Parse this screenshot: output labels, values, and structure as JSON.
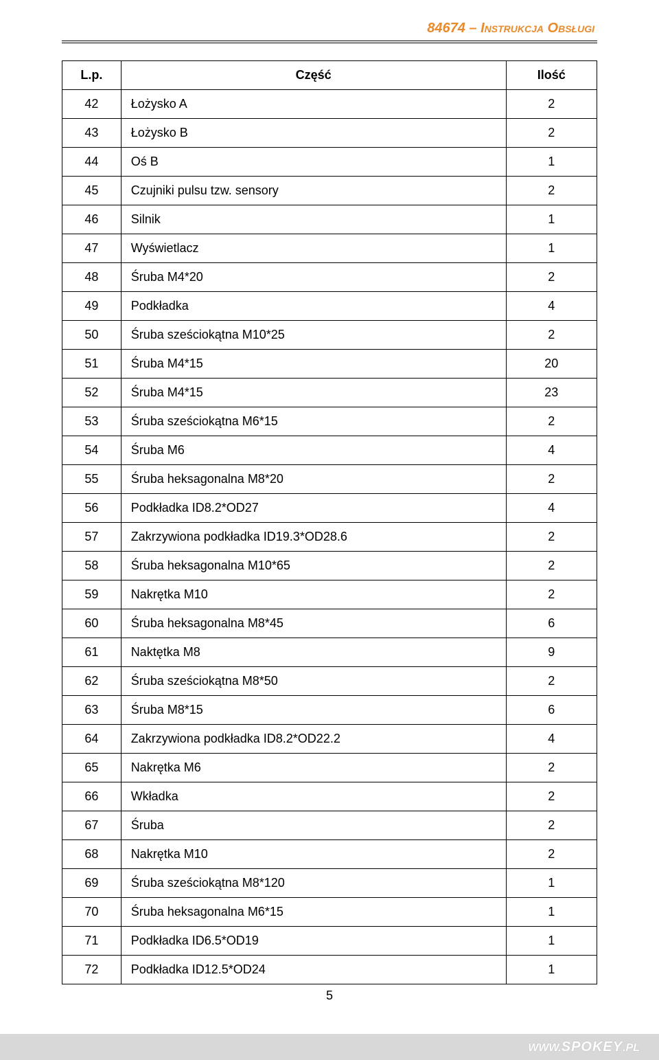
{
  "header": {
    "doc_code": "84674",
    "sep": " – ",
    "title_smallcaps": "Instrukcja Obsługi",
    "color": "#e98b2c"
  },
  "table": {
    "columns": [
      "L.p.",
      "Część",
      "Ilość"
    ],
    "rows": [
      [
        "42",
        "Łożysko A",
        "2"
      ],
      [
        "43",
        "Łożysko B",
        "2"
      ],
      [
        "44",
        "Oś B",
        "1"
      ],
      [
        "45",
        "Czujniki pulsu tzw. sensory",
        "2"
      ],
      [
        "46",
        "Silnik",
        "1"
      ],
      [
        "47",
        "Wyświetlacz",
        "1"
      ],
      [
        "48",
        "Śruba M4*20",
        "2"
      ],
      [
        "49",
        "Podkładka",
        "4"
      ],
      [
        "50",
        "Śruba sześciokątna M10*25",
        "2"
      ],
      [
        "51",
        "Śruba M4*15",
        "20"
      ],
      [
        "52",
        "Śruba M4*15",
        "23"
      ],
      [
        "53",
        "Śruba sześciokątna M6*15",
        "2"
      ],
      [
        "54",
        "Śruba M6",
        "4"
      ],
      [
        "55",
        "Śruba heksagonalna M8*20",
        "2"
      ],
      [
        "56",
        "Podkładka ID8.2*OD27",
        "4"
      ],
      [
        "57",
        "Zakrzywiona podkładka ID19.3*OD28.6",
        "2"
      ],
      [
        "58",
        "Śruba heksagonalna M10*65",
        "2"
      ],
      [
        "59",
        "Nakrętka M10",
        "2"
      ],
      [
        "60",
        "Śruba heksagonalna M8*45",
        "6"
      ],
      [
        "61",
        "Naktętka M8",
        "9"
      ],
      [
        "62",
        "Śruba sześciokątna M8*50",
        "2"
      ],
      [
        "63",
        "Śruba M8*15",
        "6"
      ],
      [
        "64",
        "Zakrzywiona podkładka ID8.2*OD22.2",
        "4"
      ],
      [
        "65",
        "Nakrętka M6",
        "2"
      ],
      [
        "66",
        "Wkładka",
        "2"
      ],
      [
        "67",
        "Śruba",
        "2"
      ],
      [
        "68",
        "Nakrętka M10",
        "2"
      ],
      [
        "69",
        "Śruba sześciokątna M8*120",
        "1"
      ],
      [
        "70",
        "Śruba heksagonalna M6*15",
        "1"
      ],
      [
        "71",
        "Podkładka ID6.5*OD19",
        "1"
      ],
      [
        "72",
        "Podkładka ID12.5*OD24",
        "1"
      ]
    ],
    "border_color": "#000000",
    "header_fontweight": "bold",
    "cell_fontsize": 18
  },
  "page_number": "5",
  "footer": {
    "www": "WWW.",
    "brand": "SPOKEY",
    "tld": ".PL",
    "bar_color": "#d8d8d8",
    "text_color": "#ffffff"
  }
}
